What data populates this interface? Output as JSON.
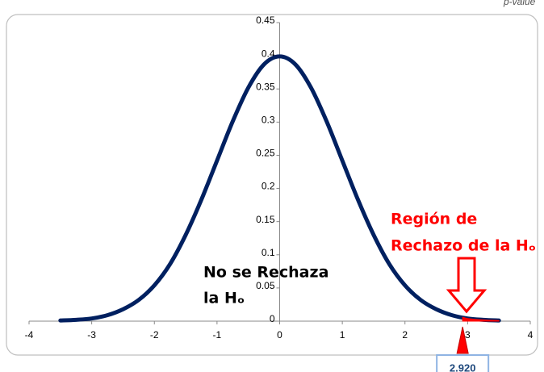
{
  "chart_data": {
    "type": "line",
    "xlim": [
      -4,
      4
    ],
    "ylim": [
      0,
      0.45
    ],
    "xticks": [
      -4,
      -3,
      -2,
      -1,
      0,
      1,
      2,
      3,
      4
    ],
    "yticks": [
      0,
      0.05,
      0.1,
      0.15,
      0.2,
      0.25,
      0.3,
      0.35,
      0.4,
      0.45
    ],
    "series": [
      {
        "color": "#002060",
        "x": [
          -3.5,
          -3.25,
          -3,
          -2.75,
          -2.5,
          -2.25,
          -2,
          -1.75,
          -1.5,
          -1.25,
          -1,
          -0.75,
          -0.5,
          -0.25,
          0,
          0.25,
          0.5,
          0.75,
          1,
          1.25,
          1.5,
          1.75,
          2,
          2.25,
          2.5,
          2.75,
          3,
          3.25,
          3.5
        ],
        "values": [
          0.001,
          0.002,
          0.004,
          0.009,
          0.018,
          0.032,
          0.054,
          0.086,
          0.13,
          0.183,
          0.242,
          0.301,
          0.352,
          0.387,
          0.399,
          0.387,
          0.352,
          0.301,
          0.242,
          0.183,
          0.13,
          0.086,
          0.054,
          0.032,
          0.018,
          0.009,
          0.004,
          0.002,
          0.001
        ]
      },
      {
        "color": "#ff0000",
        "fill": true,
        "x": [
          2.92,
          3,
          3.25,
          3.5
        ],
        "values": [
          0.006,
          0.004,
          0.002,
          0.001
        ]
      }
    ],
    "critical_value": {
      "value": 2.92,
      "label": "2.920"
    },
    "annotations": {
      "reject": [
        "Región de",
        "Rechazo de la Hₒ"
      ],
      "accept": [
        "No se Rechaza",
        "la Hₒ"
      ],
      "corner": "p-value"
    }
  }
}
